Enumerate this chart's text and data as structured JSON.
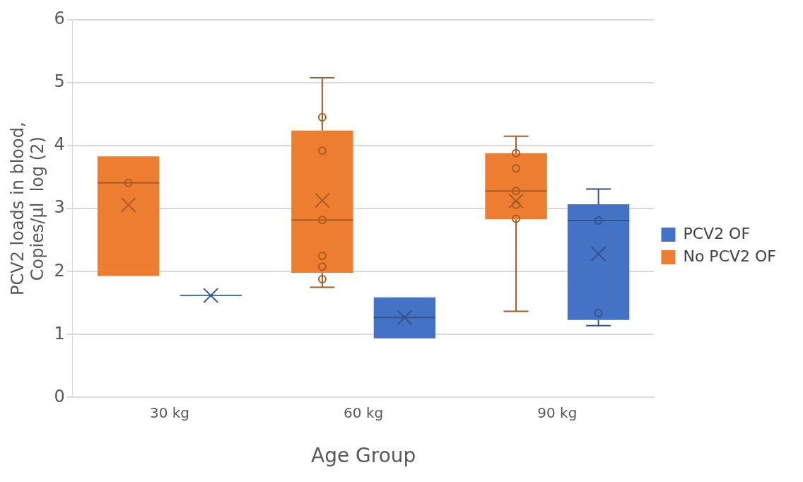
{
  "chart_data": {
    "type": "box",
    "xlabel": "Age Group",
    "ylabel": "PCV2 loads in blood,\nCopies/µl  log (2)",
    "categories": [
      "30 kg",
      "60 kg",
      "90 kg"
    ],
    "ylim": [
      0,
      6
    ],
    "yticks": [
      0,
      1,
      2,
      3,
      4,
      5,
      6
    ],
    "grid": "y",
    "legend": "right",
    "series": [
      {
        "name": "No PCV2 OF",
        "color": "#ed7d31",
        "boxes": [
          {
            "low": 1.93,
            "q1": 1.93,
            "median": 3.41,
            "q3": 3.83,
            "high": 3.83,
            "mean": 3.06,
            "outliers": [
              3.41
            ]
          },
          {
            "low": 1.75,
            "q1": 1.98,
            "median": 2.82,
            "q3": 4.24,
            "high": 5.08,
            "mean": 3.13,
            "outliers": [
              4.45,
              3.92,
              2.82,
              2.25,
              2.08,
              1.88
            ]
          },
          {
            "low": 1.37,
            "q1": 2.83,
            "median": 3.28,
            "q3": 3.88,
            "high": 4.15,
            "mean": 3.12,
            "outliers": [
              3.88,
              3.64,
              3.28,
              3.06,
              2.84
            ]
          }
        ]
      },
      {
        "name": "PCV2 OF",
        "color": "#4472c4",
        "boxes": [
          {
            "low": 1.62,
            "q1": 1.62,
            "median": 1.62,
            "q3": 1.62,
            "high": 1.62,
            "mean": 1.62
          },
          {
            "low": 0.94,
            "q1": 0.94,
            "median": 1.27,
            "q3": 1.59,
            "high": 1.59,
            "mean": 1.27
          },
          {
            "low": 1.14,
            "q1": 1.23,
            "median": 2.81,
            "q3": 3.07,
            "high": 3.31,
            "mean": 2.28,
            "outliers": [
              2.81,
              1.34
            ]
          }
        ]
      }
    ]
  }
}
